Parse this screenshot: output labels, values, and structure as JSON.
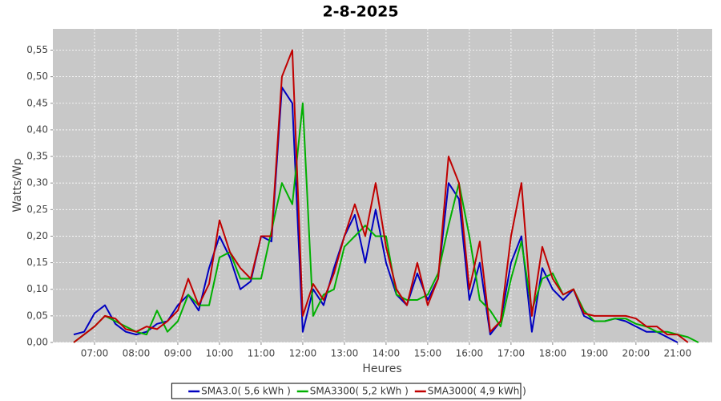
{
  "chart_data": {
    "type": "line",
    "title": "2-8-2025",
    "x_label": "Heures",
    "y_label": "Watts/Wp",
    "x": [
      6.5,
      6.75,
      7,
      7.25,
      7.5,
      7.75,
      8,
      8.25,
      8.5,
      8.75,
      9,
      9.25,
      9.5,
      9.75,
      10,
      10.25,
      10.5,
      10.75,
      11,
      11.25,
      11.5,
      11.75,
      12,
      12.25,
      12.5,
      12.75,
      13,
      13.25,
      13.5,
      13.75,
      14,
      14.25,
      14.5,
      14.75,
      15,
      15.25,
      15.5,
      15.75,
      16,
      16.25,
      16.5,
      16.75,
      17,
      17.25,
      17.5,
      17.75,
      18,
      18.25,
      18.5,
      18.75,
      19,
      19.25,
      19.5,
      19.75,
      20,
      20.25,
      20.5,
      20.75,
      21,
      21.25,
      21.5
    ],
    "series": [
      {
        "name": "SMA3.0( 5,6 kWh )",
        "color": "#0000c0",
        "values": [
          0.015,
          0.02,
          0.055,
          0.07,
          0.035,
          0.02,
          0.015,
          0.02,
          0.035,
          0.04,
          0.07,
          0.09,
          0.06,
          0.14,
          0.2,
          0.16,
          0.1,
          0.115,
          0.2,
          0.19,
          0.48,
          0.45,
          0.02,
          0.1,
          0.07,
          0.14,
          0.2,
          0.24,
          0.15,
          0.25,
          0.15,
          0.09,
          0.07,
          0.13,
          0.08,
          0.12,
          0.3,
          0.27,
          0.08,
          0.15,
          0.015,
          0.04,
          0.15,
          0.2,
          0.02,
          0.14,
          0.1,
          0.08,
          0.1,
          0.05,
          0.04,
          0.04,
          0.045,
          0.04,
          0.03,
          0.02,
          0.02,
          0.01,
          0.0,
          null,
          null
        ]
      },
      {
        "name": "SMA3300( 5,2 kWh )",
        "color": "#00b000",
        "values": [
          0.0,
          0.015,
          0.03,
          0.05,
          0.04,
          0.03,
          0.02,
          0.015,
          0.06,
          0.02,
          0.04,
          0.09,
          0.07,
          0.07,
          0.16,
          0.17,
          0.12,
          0.12,
          0.12,
          0.21,
          0.3,
          0.26,
          0.45,
          0.05,
          0.09,
          0.1,
          0.18,
          0.2,
          0.22,
          0.2,
          0.2,
          0.09,
          0.08,
          0.08,
          0.09,
          0.13,
          0.22,
          0.3,
          0.2,
          0.08,
          0.06,
          0.03,
          0.12,
          0.19,
          0.06,
          0.12,
          0.13,
          0.09,
          0.1,
          0.06,
          0.04,
          0.04,
          0.045,
          0.045,
          0.035,
          0.03,
          0.02,
          0.02,
          0.015,
          0.01,
          0.0
        ]
      },
      {
        "name": "SMA3000( 4,9 kWh )",
        "color": "#c00000",
        "values": [
          0.0,
          0.015,
          0.03,
          0.05,
          0.045,
          0.025,
          0.02,
          0.03,
          0.025,
          0.04,
          0.06,
          0.12,
          0.07,
          0.11,
          0.23,
          0.17,
          0.14,
          0.12,
          0.2,
          0.2,
          0.5,
          0.55,
          0.05,
          0.11,
          0.08,
          0.13,
          0.2,
          0.26,
          0.2,
          0.3,
          0.18,
          0.1,
          0.07,
          0.15,
          0.07,
          0.12,
          0.35,
          0.3,
          0.1,
          0.19,
          0.02,
          0.04,
          0.2,
          0.3,
          0.05,
          0.18,
          0.12,
          0.09,
          0.1,
          0.055,
          0.05,
          0.05,
          0.05,
          0.05,
          0.045,
          0.03,
          0.03,
          0.015,
          0.015,
          0.0,
          null
        ]
      }
    ],
    "xlim": [
      6,
      21.83
    ],
    "xticks": [
      {
        "value": 7,
        "label": "07:00"
      },
      {
        "value": 8,
        "label": "08:00"
      },
      {
        "value": 9,
        "label": "09:00"
      },
      {
        "value": 10,
        "label": "10:00"
      },
      {
        "value": 11,
        "label": "11:00"
      },
      {
        "value": 12,
        "label": "12:00"
      },
      {
        "value": 13,
        "label": "13:00"
      },
      {
        "value": 14,
        "label": "14:00"
      },
      {
        "value": 15,
        "label": "15:00"
      },
      {
        "value": 16,
        "label": "16:00"
      },
      {
        "value": 17,
        "label": "17:00"
      },
      {
        "value": 18,
        "label": "18:00"
      },
      {
        "value": 19,
        "label": "19:00"
      },
      {
        "value": 20,
        "label": "20:00"
      },
      {
        "value": 21,
        "label": "21:00"
      }
    ],
    "ylim": [
      0,
      0.59
    ],
    "yticks": [
      {
        "value": 0,
        "label": "0,00"
      },
      {
        "value": 0.05,
        "label": "0,05"
      },
      {
        "value": 0.1,
        "label": "0,10"
      },
      {
        "value": 0.15,
        "label": "0,15"
      },
      {
        "value": 0.2,
        "label": "0,20"
      },
      {
        "value": 0.25,
        "label": "0,25"
      },
      {
        "value": 0.3,
        "label": "0,30"
      },
      {
        "value": 0.35,
        "label": "0,35"
      },
      {
        "value": 0.4,
        "label": "0,40"
      },
      {
        "value": 0.45,
        "label": "0,45"
      },
      {
        "value": 0.5,
        "label": "0,50"
      },
      {
        "value": 0.55,
        "label": "0,55"
      }
    ],
    "grid": true,
    "legend_position": "bottom"
  }
}
